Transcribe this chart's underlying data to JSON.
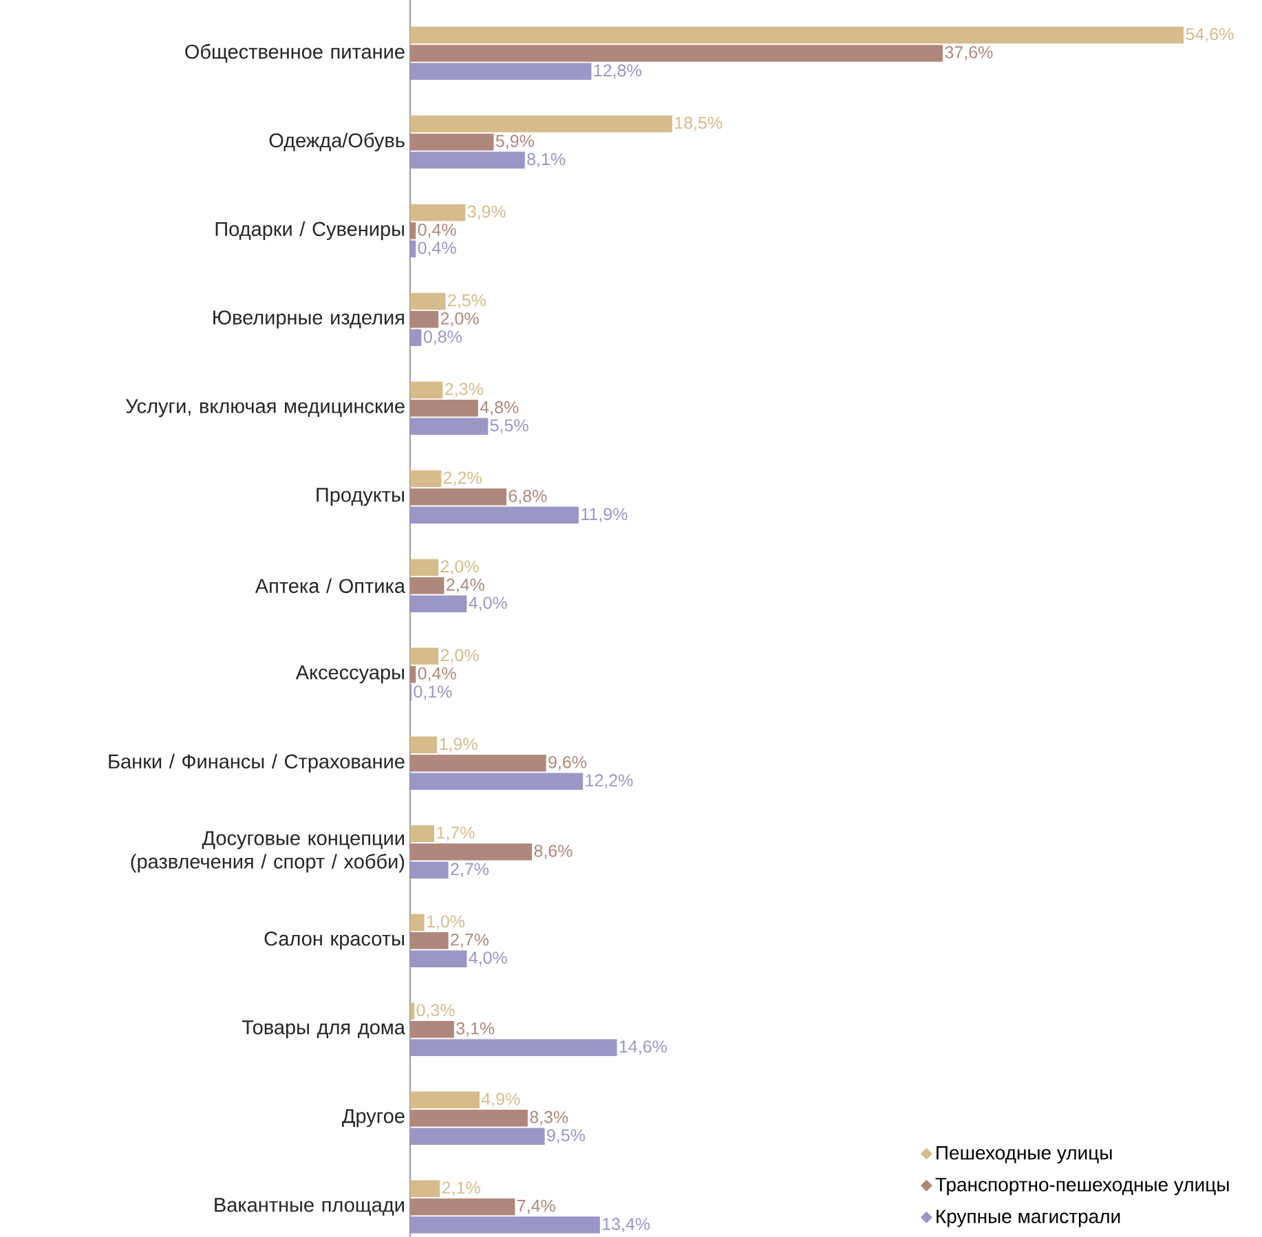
{
  "chart_data": {
    "type": "bar",
    "orientation": "horizontal",
    "legend": "bottom right",
    "categories": [
      "Общественное питание",
      "Одежда/Обувь",
      "Подарки / Сувениры",
      "Ювелирные изделия",
      "Услуги, включая медицинские",
      "Продукты",
      "Аптека / Оптика",
      "Аксессуары",
      "Банки / Финансы / Страхование",
      "Досуговые концепции (развлечения / спорт / хобби)",
      "Салон красоты",
      "Товары для дома",
      "Другое",
      "Вакантные площади"
    ],
    "series": [
      {
        "name": "Пешеходные улицы",
        "color": "#d6bb8b",
        "values": [
          54.6,
          18.5,
          3.9,
          2.5,
          2.3,
          2.2,
          2.0,
          2.0,
          1.9,
          1.7,
          1.0,
          0.3,
          4.9,
          2.1
        ],
        "value_labels": [
          "54,6%",
          "18,5%",
          "3,9%",
          "2,5%",
          "2,3%",
          "2,2%",
          "2,0%",
          "2,0%",
          "1,9%",
          "1,7%",
          "1,0%",
          "0,3%",
          "4,9%",
          "2,1%"
        ]
      },
      {
        "name": "Транспортно-пешеходные улицы",
        "color": "#b0877c",
        "values": [
          37.6,
          5.9,
          0.4,
          2.0,
          4.8,
          6.8,
          2.4,
          0.4,
          9.6,
          8.6,
          2.7,
          3.1,
          8.3,
          7.4
        ],
        "value_labels": [
          "37,6%",
          "5,9%",
          "0,4%",
          "2,0%",
          "4,8%",
          "6,8%",
          "2,4%",
          "0,4%",
          "9,6%",
          "8,6%",
          "2,7%",
          "3,1%",
          "8,3%",
          "7,4%"
        ]
      },
      {
        "name": "Крупные магистрали",
        "color": "#9a96c6",
        "values": [
          12.8,
          8.1,
          0.4,
          0.8,
          5.5,
          11.9,
          4.0,
          0.1,
          12.2,
          2.7,
          4.0,
          14.6,
          9.5,
          13.4
        ],
        "value_labels": [
          "12,8%",
          "8,1%",
          "0,4%",
          "0,8%",
          "5,5%",
          "11,9%",
          "4,0%",
          "0,1%",
          "12,2%",
          "2,7%",
          "4,0%",
          "14,6%",
          "9,5%",
          "13,4%"
        ]
      }
    ]
  }
}
